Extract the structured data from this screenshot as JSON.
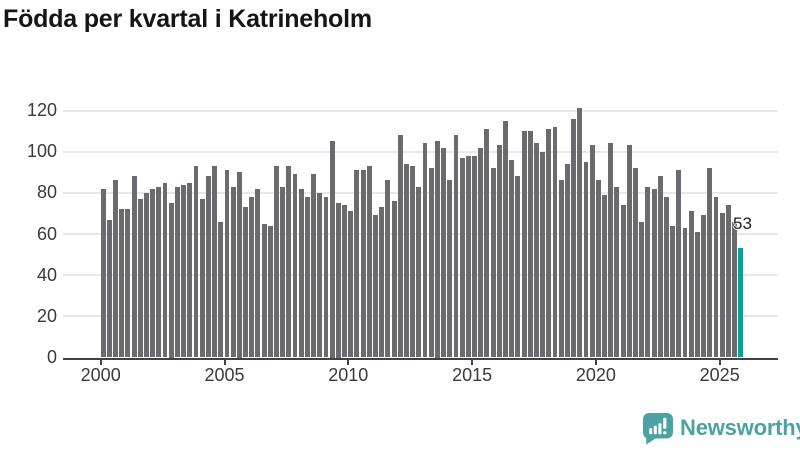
{
  "header": {
    "title": "Födda per kvartal i Katrineholm"
  },
  "chart_data": {
    "type": "bar",
    "title": "Födda per kvartal i Katrineholm",
    "frequency": "quarterly",
    "start_period": "2000-Q1",
    "end_period": "2025-Q4",
    "series": [
      {
        "name": "Födda per kvartal",
        "values": [
          82,
          67,
          86,
          72,
          72,
          88,
          77,
          80,
          82,
          83,
          85,
          75,
          83,
          84,
          85,
          93,
          77,
          88,
          93,
          66,
          91,
          83,
          90,
          73,
          78,
          82,
          65,
          64,
          93,
          83,
          93,
          89,
          82,
          78,
          89,
          80,
          78,
          105,
          75,
          74,
          71,
          91,
          91,
          93,
          69,
          73,
          86,
          76,
          108,
          94,
          93,
          83,
          104,
          92,
          105,
          102,
          86,
          108,
          97,
          98,
          98,
          102,
          111,
          92,
          103,
          115,
          96,
          88,
          110,
          110,
          104,
          100,
          111,
          112,
          86,
          94,
          116,
          121,
          95,
          103,
          86,
          79,
          104,
          83,
          74,
          103,
          92,
          66,
          83,
          82,
          88,
          78,
          64,
          91,
          63,
          71,
          61,
          69,
          92,
          78,
          70,
          74,
          66,
          53
        ]
      }
    ],
    "highlighted_bar": {
      "period": "2025-Q4",
      "value": 53
    },
    "y_ticks": [
      0,
      20,
      40,
      60,
      80,
      100,
      120
    ],
    "ylim": [
      0,
      120
    ],
    "x_tick_labels": [
      "2000",
      "2005",
      "2010",
      "2015",
      "2020",
      "2025"
    ],
    "grid": true,
    "legend_position": "none",
    "colors": {
      "bar": "#6a6a6f",
      "highlight": "#0d9f9e",
      "axis": "#414146",
      "gridline": "#e8e8e8",
      "tick_label": "#3a3a3a",
      "title": "#151515",
      "annotation": "#1c1c1c",
      "watermark": "#4aa3a2"
    }
  },
  "annotation": {
    "last_value_label": "53"
  },
  "watermark": {
    "brand": "Newsworthy"
  }
}
